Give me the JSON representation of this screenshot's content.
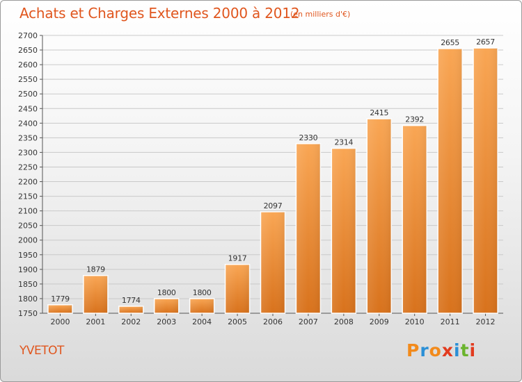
{
  "header": {
    "title": "Achats et Charges Externes 2000 à 2012",
    "subtitle": "(en milliers d'€)"
  },
  "footer": {
    "city": "YVETOT",
    "logo_text": "Proxiti",
    "logo_colors": [
      "#f28a1b",
      "#2a8fd6",
      "#f28a1b",
      "#e23b1f",
      "#2a8fd6",
      "#6ab42d",
      "#e23b1f"
    ]
  },
  "colors": {
    "accent": "#e0561e",
    "bar_light": "#f9a654",
    "bar_dark": "#d8721c",
    "grid": "#c9c9c9"
  },
  "chart_data": {
    "type": "bar",
    "title": "Achats et Charges Externes 2000 à 2012",
    "subtitle": "(en milliers d'€)",
    "categories": [
      "2000",
      "2001",
      "2002",
      "2003",
      "2004",
      "2005",
      "2006",
      "2007",
      "2008",
      "2009",
      "2010",
      "2011",
      "2012"
    ],
    "values": [
      1779,
      1879,
      1774,
      1800,
      1800,
      1917,
      2097,
      2330,
      2314,
      2415,
      2392,
      2655,
      2657
    ],
    "ylim": [
      1750,
      2700
    ],
    "ytick_step": 50,
    "grid": true,
    "data_labels": true,
    "xlabel": "",
    "ylabel": ""
  }
}
